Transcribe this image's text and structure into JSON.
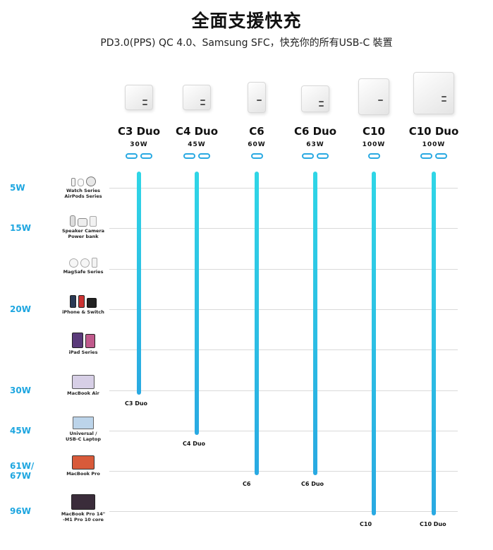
{
  "header": {
    "title": "全面支援快充",
    "subtitle": "PD3.0(PPS) QC 4.0、Samsung SFC，快充你的所有USB-C 裝置"
  },
  "chargers": [
    {
      "name": "C3 Duo",
      "watt": "30W",
      "ports": 2,
      "end_label": "C3 Duo"
    },
    {
      "name": "C4 Duo",
      "watt": "45W",
      "ports": 2,
      "end_label": "C4 Duo"
    },
    {
      "name": "C6",
      "watt": "60W",
      "ports": 1,
      "end_label": "C6"
    },
    {
      "name": "C6 Duo",
      "watt": "63W",
      "ports": 2,
      "end_label": "C6 Duo"
    },
    {
      "name": "C10",
      "watt": "100W",
      "ports": 1,
      "end_label": "C10"
    },
    {
      "name": "C10 Duo",
      "watt": "100W",
      "ports": 2,
      "end_label": "C10 Duo"
    }
  ],
  "rows": [
    {
      "watt": "5W",
      "device": "Watch Series\nAirPods Series",
      "icon": "watch-airpods-icon"
    },
    {
      "watt": "15W",
      "device": "Speaker Camera\nPower bank",
      "icon": "speaker-camera-icon"
    },
    {
      "watt": "",
      "device": "MagSafe Series",
      "icon": "magsafe-icon"
    },
    {
      "watt": "20W",
      "device": "iPhone & Switch",
      "icon": "iphone-switch-icon"
    },
    {
      "watt": "",
      "device": "iPad Series",
      "icon": "ipad-icon"
    },
    {
      "watt": "30W",
      "device": "MacBook Air",
      "icon": "macbook-air-icon"
    },
    {
      "watt": "45W",
      "device": "Universal /\nUSB-C Laptop",
      "icon": "laptop-icon"
    },
    {
      "watt": "61W/\n67W",
      "device": "MacBook Pro",
      "icon": "macbook-pro-icon"
    },
    {
      "watt": "96W",
      "device": "MacBook Pro 14\"\n-M1 Pro  10 core",
      "icon": "macbook-pro-14-icon"
    }
  ],
  "colors": {
    "accent": "#29a9e2",
    "bar_top": "#2fd6e6",
    "label": "#1ea6e0"
  }
}
